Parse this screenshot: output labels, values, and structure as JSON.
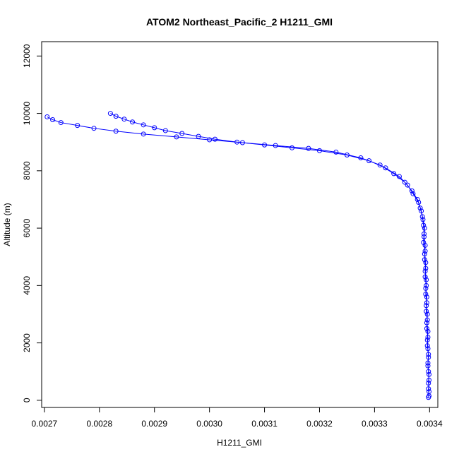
{
  "chart_data": {
    "type": "scatter",
    "title": "ATOM2 Northeast_Pacific_2 H1211_GMI",
    "xlabel": "H1211_GMI",
    "ylabel": "Altitude (m)",
    "xlim": [
      0.002695,
      0.003415
    ],
    "ylim": [
      -250,
      12500
    ],
    "xticks": [
      0.0027,
      0.0028,
      0.0029,
      0.003,
      0.0031,
      0.0032,
      0.0033,
      0.0034
    ],
    "xtick_labels": [
      "0.0027",
      "0.0028",
      "0.0029",
      "0.0030",
      "0.0031",
      "0.0032",
      "0.0033",
      "0.0034"
    ],
    "yticks": [
      0,
      2000,
      4000,
      6000,
      8000,
      10000,
      12000
    ],
    "ytick_labels": [
      "0",
      "2000",
      "4000",
      "6000",
      "8000",
      "10000",
      "12000"
    ],
    "grid": false,
    "color": "#0000ff",
    "marker": "open-circle",
    "series": [
      {
        "points": [
          [
            0.003398,
            100
          ],
          [
            0.003399,
            300
          ],
          [
            0.003398,
            600
          ],
          [
            0.003399,
            900
          ],
          [
            0.003397,
            1200
          ],
          [
            0.003398,
            1500
          ],
          [
            0.003397,
            1800
          ],
          [
            0.003396,
            2100
          ],
          [
            0.003397,
            2400
          ],
          [
            0.003395,
            2700
          ],
          [
            0.003396,
            3000
          ],
          [
            0.003394,
            3300
          ],
          [
            0.003395,
            3600
          ],
          [
            0.003393,
            3900
          ],
          [
            0.003394,
            4200
          ],
          [
            0.003392,
            4500
          ],
          [
            0.003393,
            4800
          ],
          [
            0.003391,
            5100
          ],
          [
            0.003392,
            5400
          ],
          [
            0.00339,
            5700
          ],
          [
            0.003391,
            6000
          ],
          [
            0.003388,
            6300
          ],
          [
            0.003385,
            6600
          ],
          [
            0.00338,
            6900
          ],
          [
            0.00337,
            7200
          ],
          [
            0.00336,
            7500
          ],
          [
            0.003345,
            7800
          ],
          [
            0.00332,
            8100
          ],
          [
            0.00329,
            8350
          ],
          [
            0.00325,
            8550
          ],
          [
            0.0032,
            8700
          ],
          [
            0.00315,
            8800
          ],
          [
            0.0031,
            8900
          ],
          [
            0.00305,
            9000
          ],
          [
            0.00301,
            9100
          ],
          [
            0.00298,
            9200
          ],
          [
            0.00295,
            9300
          ],
          [
            0.00292,
            9400
          ],
          [
            0.0029,
            9500
          ],
          [
            0.00288,
            9600
          ],
          [
            0.00286,
            9700
          ],
          [
            0.002845,
            9800
          ],
          [
            0.00283,
            9900
          ],
          [
            0.00282,
            10000
          ]
        ]
      },
      {
        "points": [
          [
            0.003399,
            150
          ],
          [
            0.003398,
            400
          ],
          [
            0.003399,
            700
          ],
          [
            0.003398,
            1000
          ],
          [
            0.003397,
            1300
          ],
          [
            0.003398,
            1600
          ],
          [
            0.003396,
            1900
          ],
          [
            0.003397,
            2200
          ],
          [
            0.003395,
            2500
          ],
          [
            0.003396,
            2800
          ],
          [
            0.003394,
            3100
          ],
          [
            0.003395,
            3400
          ],
          [
            0.003393,
            3700
          ],
          [
            0.003394,
            4000
          ],
          [
            0.003392,
            4300
          ],
          [
            0.003393,
            4600
          ],
          [
            0.003391,
            4900
          ],
          [
            0.003392,
            5200
          ],
          [
            0.003389,
            5500
          ],
          [
            0.00339,
            5800
          ],
          [
            0.003389,
            6100
          ],
          [
            0.003387,
            6400
          ],
          [
            0.003383,
            6700
          ],
          [
            0.003378,
            7000
          ],
          [
            0.003368,
            7300
          ],
          [
            0.003355,
            7600
          ],
          [
            0.003335,
            7900
          ],
          [
            0.00331,
            8200
          ],
          [
            0.003275,
            8450
          ],
          [
            0.00323,
            8650
          ],
          [
            0.00318,
            8780
          ],
          [
            0.00312,
            8880
          ],
          [
            0.00306,
            8980
          ],
          [
            0.003,
            9080
          ],
          [
            0.00294,
            9180
          ],
          [
            0.00288,
            9280
          ],
          [
            0.00283,
            9380
          ],
          [
            0.00279,
            9480
          ],
          [
            0.00276,
            9580
          ],
          [
            0.00273,
            9680
          ],
          [
            0.002715,
            9780
          ],
          [
            0.002705,
            9880
          ]
        ]
      }
    ]
  }
}
